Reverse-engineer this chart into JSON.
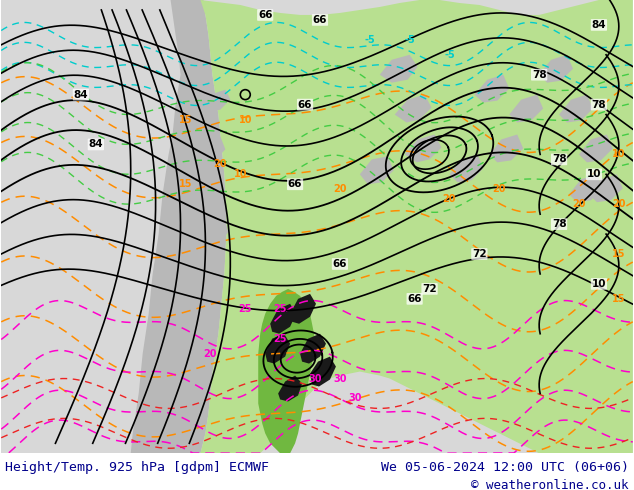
{
  "title_left": "Height/Temp. 925 hPa [gdpm] ECMWF",
  "title_right": "We 05-06-2024 12:00 UTC (06+06)",
  "copyright": "© weatheronline.co.uk",
  "text_color": "#00008B",
  "title_fontsize": 9.5,
  "copy_fontsize": 9,
  "fig_width": 6.34,
  "fig_height": 4.9,
  "dpi": 100,
  "bg_light": "#e8e8e8",
  "ocean_color": "#d8d8d8",
  "land_green": "#b8e090",
  "land_gray": "#b8b8b8",
  "bottom_bar_color": "#ffffff",
  "contour_colors": {
    "height": "#000000",
    "temp_orange": "#ff8c00",
    "temp_cyan": "#00cccc",
    "temp_green": "#44cc44",
    "temp_magenta": "#ff00cc",
    "temp_red": "#ee2222"
  }
}
